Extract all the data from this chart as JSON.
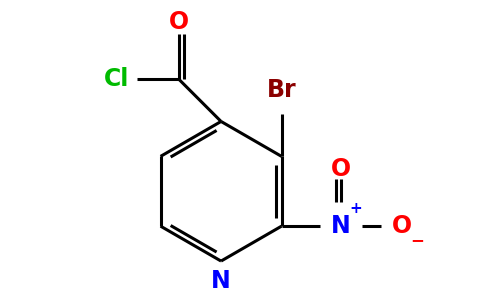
{
  "background_color": "#ffffff",
  "bond_color": "#000000",
  "atom_colors": {
    "O": "#ff0000",
    "Cl": "#00bb00",
    "Br": "#8b0000",
    "N_ring": "#0000ff",
    "N_plus": "#0000ff",
    "O_minus": "#ff0000"
  },
  "figsize": [
    4.84,
    3.0
  ],
  "dpi": 100
}
